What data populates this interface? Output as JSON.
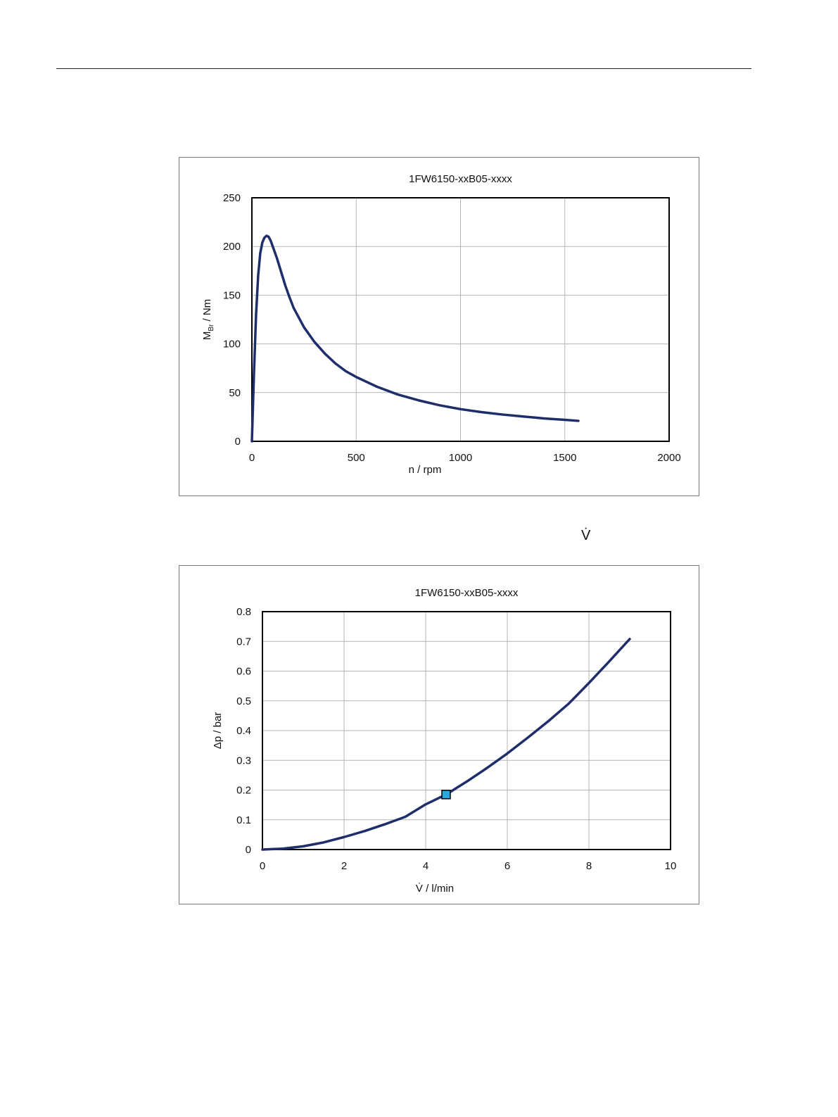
{
  "header": {
    "dotted_v_symbol": "V̇"
  },
  "chart_data": [
    {
      "type": "line",
      "title": "1FW6150-xxB05-xxxx",
      "xlabel": "n / rpm",
      "ylabel_main": "M",
      "ylabel_sub": "Br",
      "ylabel_rest": " / Nm",
      "xlim": [
        0,
        2000
      ],
      "ylim": [
        0,
        250
      ],
      "xticks": [
        0,
        500,
        1000,
        1500,
        2000
      ],
      "yticks": [
        0,
        50,
        100,
        150,
        200,
        250
      ],
      "grid": true,
      "color": "#1f2d6b",
      "series": [
        {
          "x": [
            0,
            10,
            20,
            30,
            40,
            50,
            60,
            70,
            80,
            90,
            100,
            120,
            140,
            160,
            180,
            200,
            250,
            300,
            350,
            400,
            450,
            500,
            600,
            700,
            800,
            900,
            1000,
            1100,
            1200,
            1300,
            1400,
            1500,
            1565
          ],
          "values": [
            0,
            70,
            130,
            170,
            193,
            204,
            209,
            211,
            210,
            206,
            200,
            188,
            174,
            160,
            148,
            137,
            117,
            102,
            90,
            80,
            72,
            66,
            56,
            48,
            42,
            37,
            33,
            30,
            27.5,
            25.5,
            23.5,
            22,
            21
          ]
        }
      ]
    },
    {
      "type": "line",
      "title": "1FW6150-xxB05-xxxx",
      "xlabel": "V̇ / l/min",
      "ylabel": "Δp / bar",
      "xlim": [
        0,
        10
      ],
      "ylim": [
        0,
        0.8
      ],
      "xticks": [
        0,
        2,
        4,
        6,
        8,
        10
      ],
      "yticks": [
        0,
        0.1,
        0.2,
        0.3,
        0.4,
        0.5,
        0.6,
        0.7,
        0.8
      ],
      "grid": true,
      "color": "#1f2d6b",
      "marker_color": "#29a9e0",
      "series": [
        {
          "x": [
            0,
            0.5,
            1,
            1.5,
            2,
            2.5,
            3,
            3.5,
            4,
            4.5,
            5,
            5.5,
            6,
            6.5,
            7,
            7.5,
            8,
            8.5,
            9
          ],
          "values": [
            0,
            0.003,
            0.011,
            0.024,
            0.042,
            0.062,
            0.085,
            0.11,
            0.152,
            0.185,
            0.228,
            0.274,
            0.323,
            0.376,
            0.431,
            0.49,
            0.56,
            0.633,
            0.708
          ]
        }
      ],
      "marker_point": {
        "x": 4.5,
        "y": 0.185
      }
    }
  ]
}
